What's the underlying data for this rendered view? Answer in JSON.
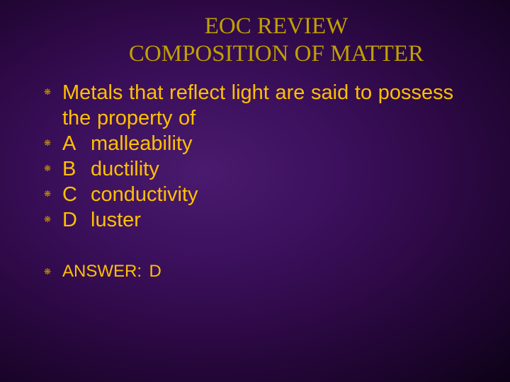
{
  "colors": {
    "title": "#c0a000",
    "body": "#ffc000",
    "bullet": "#cc9900",
    "bg_center": "#4a1a6e",
    "bg_edge": "#0e0218"
  },
  "typography": {
    "title_font": "Times New Roman",
    "body_font": "Arial",
    "title_fontsize_pt": 25,
    "body_fontsize_pt": 22,
    "answer_fontsize_pt": 18
  },
  "title": {
    "line1": "EOC REVIEW",
    "line2": "COMPOSITION OF MATTER"
  },
  "bullet_glyph": "❋",
  "question": "Metals that reflect light are said to possess the property of",
  "options": [
    {
      "letter": "A",
      "text": "malleability"
    },
    {
      "letter": "B",
      "text": "ductility"
    },
    {
      "letter": "C",
      "text": "conductivity"
    },
    {
      "letter": "D",
      "text": "luster"
    }
  ],
  "answer": {
    "label": "ANSWER:",
    "value": "D"
  }
}
